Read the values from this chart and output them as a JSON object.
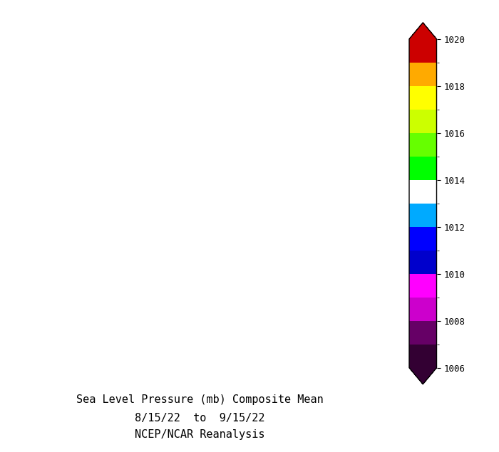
{
  "title_line1": "Sea Level Pressure (mb) Composite Mean",
  "title_line2": "8/15/22  to  9/15/22",
  "title_line3": "NCEP/NCAR Reanalysis",
  "colorbar_levels": [
    1006,
    1007,
    1008,
    1009,
    1010,
    1011,
    1012,
    1013,
    1014,
    1015,
    1016,
    1017,
    1018,
    1019,
    1020
  ],
  "colorbar_ticks": [
    1006,
    1008,
    1010,
    1012,
    1014,
    1016,
    1018,
    1020
  ],
  "colors": [
    "#330033",
    "#660066",
    "#CC00CC",
    "#FF00FF",
    "#0000CC",
    "#0000FF",
    "#00AAFF",
    "#FFFFFF",
    "#00FF00",
    "#66FF00",
    "#CCFF00",
    "#FFFF00",
    "#FFAA00",
    "#FF4400",
    "#CC0000"
  ],
  "vmin": 1006,
  "vmax": 1020,
  "bg_color": "#ffffff",
  "title_fontsize": 11,
  "noaa_fontsize": 9
}
